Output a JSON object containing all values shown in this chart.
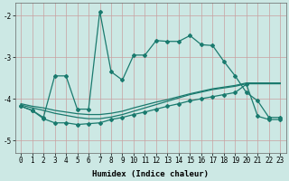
{
  "xlabel": "Humidex (Indice chaleur)",
  "bg_color": "#cce8e4",
  "grid_color": "#aacfcb",
  "line_color": "#1a7a6e",
  "line1_x": [
    0,
    1,
    2,
    3,
    4,
    5,
    6,
    7,
    8,
    9,
    10,
    11,
    12,
    13,
    14,
    15,
    16,
    17,
    18,
    19,
    20,
    21,
    22,
    23
  ],
  "line1_y": [
    -4.18,
    -4.28,
    -4.45,
    -3.45,
    -3.45,
    -4.25,
    -4.25,
    -1.9,
    -3.35,
    -3.55,
    -2.95,
    -2.95,
    -2.6,
    -2.62,
    -2.62,
    -2.48,
    -2.7,
    -2.72,
    -3.1,
    -3.45,
    -3.85,
    -4.05,
    -4.45,
    -4.45
  ],
  "line2_x": [
    0,
    1,
    2,
    3,
    4,
    5,
    6,
    7,
    8,
    9,
    10,
    11,
    12,
    13,
    14,
    15,
    16,
    17,
    18,
    19,
    20,
    21,
    22,
    23
  ],
  "line2_y": [
    -4.18,
    -4.28,
    -4.48,
    -4.58,
    -4.58,
    -4.62,
    -4.6,
    -4.58,
    -4.5,
    -4.45,
    -4.38,
    -4.32,
    -4.25,
    -4.18,
    -4.12,
    -4.05,
    -4.0,
    -3.95,
    -3.9,
    -3.85,
    -3.65,
    -4.42,
    -4.5,
    -4.5
  ],
  "line3_x": [
    0,
    1,
    2,
    3,
    4,
    5,
    6,
    7,
    8,
    9,
    10,
    11,
    12,
    13,
    14,
    15,
    16,
    17,
    18,
    19,
    20,
    21,
    22,
    23
  ],
  "line3_y": [
    -4.12,
    -4.18,
    -4.22,
    -4.28,
    -4.32,
    -4.36,
    -4.38,
    -4.38,
    -4.35,
    -4.3,
    -4.22,
    -4.15,
    -4.08,
    -4.02,
    -3.95,
    -3.88,
    -3.82,
    -3.76,
    -3.72,
    -3.68,
    -3.62,
    -3.62,
    -3.62,
    -3.62
  ],
  "line4_x": [
    0,
    1,
    2,
    3,
    4,
    5,
    6,
    7,
    8,
    9,
    10,
    11,
    12,
    13,
    14,
    15,
    16,
    17,
    18,
    19,
    20,
    21,
    22,
    23
  ],
  "line4_y": [
    -4.15,
    -4.22,
    -4.28,
    -4.35,
    -4.4,
    -4.45,
    -4.48,
    -4.48,
    -4.44,
    -4.38,
    -4.3,
    -4.22,
    -4.14,
    -4.06,
    -3.98,
    -3.9,
    -3.84,
    -3.78,
    -3.74,
    -3.7,
    -3.64,
    -3.64,
    -3.64,
    -3.64
  ],
  "yticks": [
    -5,
    -4,
    -3,
    -2
  ],
  "xticks": [
    0,
    1,
    2,
    3,
    4,
    5,
    6,
    7,
    8,
    9,
    10,
    11,
    12,
    13,
    14,
    15,
    16,
    17,
    18,
    19,
    20,
    21,
    22,
    23
  ],
  "ylim": [
    -5.3,
    -1.7
  ],
  "xlim": [
    -0.5,
    23.5
  ],
  "axis_fontsize": 6.5,
  "tick_fontsize": 5.5
}
